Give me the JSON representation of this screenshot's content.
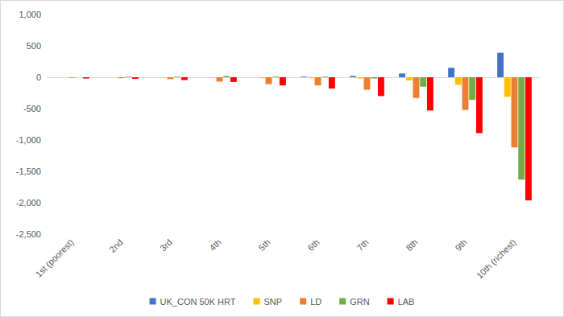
{
  "chart_data": {
    "type": "bar",
    "categories": [
      "1st (poorest)",
      "2nd",
      "3rd",
      "4th",
      "5th",
      "6th",
      "7th",
      "8th",
      "9th",
      "10th (richest)"
    ],
    "series": [
      {
        "name": "UK_CON 50K HRT",
        "color": "#4472c4",
        "values": [
          0,
          0,
          0,
          0,
          0,
          10,
          20,
          60,
          150,
          390
        ]
      },
      {
        "name": "SNP",
        "color": "#ffc000",
        "values": [
          0,
          0,
          -5,
          -10,
          -15,
          -15,
          -20,
          -50,
          -120,
          -310
        ]
      },
      {
        "name": "LD",
        "color": "#ed7d31",
        "values": [
          -10,
          -15,
          -30,
          -70,
          -110,
          -130,
          -200,
          -330,
          -520,
          -1120
        ]
      },
      {
        "name": "GRN",
        "color": "#70ad47",
        "values": [
          0,
          10,
          10,
          20,
          10,
          10,
          -20,
          -150,
          -360,
          -1630
        ]
      },
      {
        "name": "LAB",
        "color": "#ff0000",
        "values": [
          -20,
          -25,
          -45,
          -75,
          -130,
          -180,
          -300,
          -530,
          -890,
          -1960
        ]
      }
    ],
    "ylim": [
      -2500,
      1000
    ],
    "yticks": [
      {
        "value": -2500,
        "label": "-2,500"
      },
      {
        "value": -2000,
        "label": "-2,000"
      },
      {
        "value": -1500,
        "label": "-1,500"
      },
      {
        "value": -1000,
        "label": "-1,000"
      },
      -500,
      0,
      500,
      {
        "value": 1000,
        "label": "1,000"
      }
    ],
    "grid": false,
    "legend": "bottom"
  }
}
